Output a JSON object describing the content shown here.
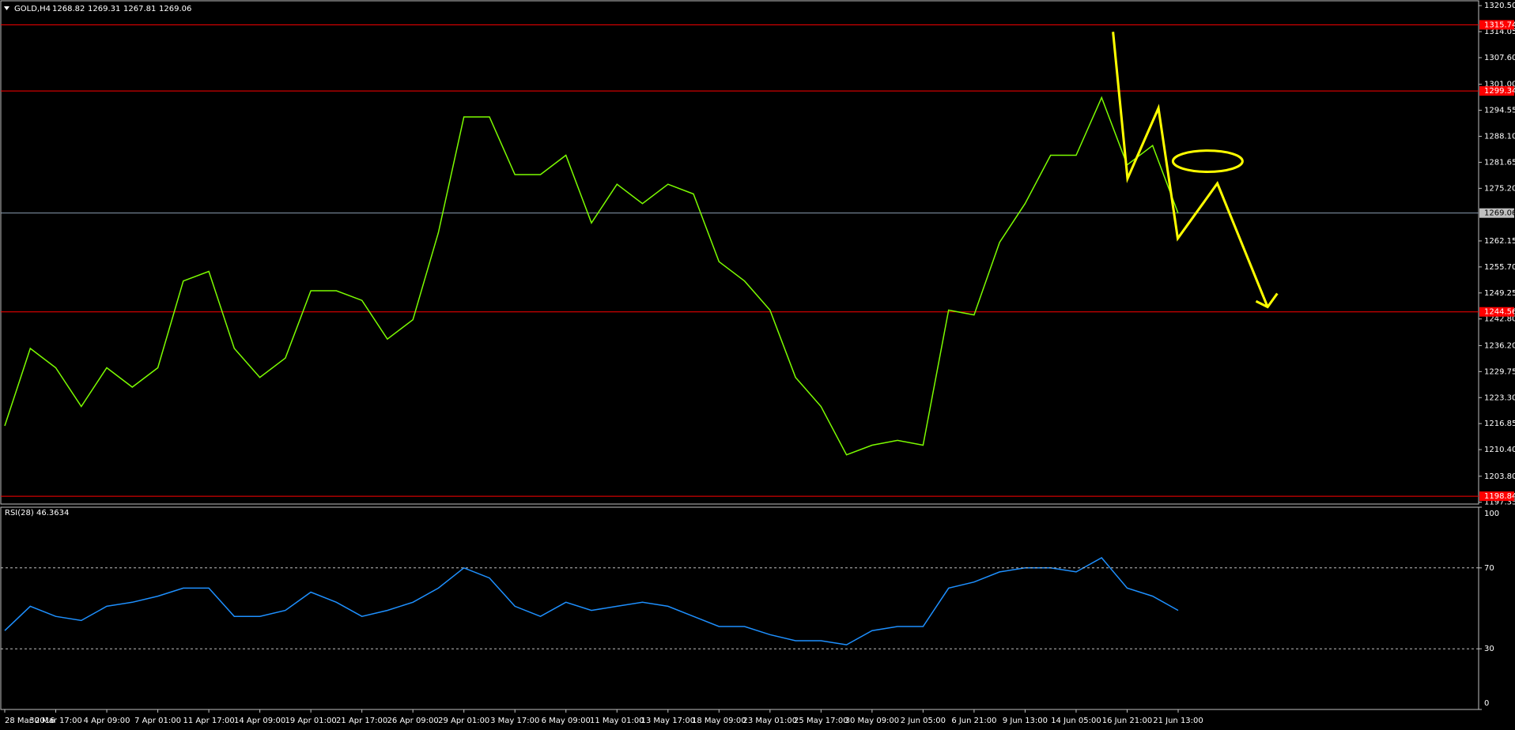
{
  "chart_data": {
    "type": "line",
    "title": "GOLD,H4",
    "quote": [
      "1268.82",
      "1269.31",
      "1267.81",
      "1269.06"
    ],
    "categories": [
      "28 Mar 2016",
      null,
      "30 Mar 17:00",
      null,
      "4 Apr 09:00",
      null,
      "7 Apr 01:00",
      null,
      "11 Apr 17:00",
      null,
      "14 Apr 09:00",
      null,
      "19 Apr 01:00",
      null,
      "21 Apr 17:00",
      null,
      "26 Apr 09:00",
      null,
      "29 Apr 01:00",
      null,
      "3 May 17:00",
      null,
      "6 May 09:00",
      null,
      "11 May 01:00",
      null,
      "13 May 17:00",
      null,
      "18 May 09:00",
      null,
      "23 May 01:00",
      null,
      "25 May 17:00",
      null,
      "30 May 09:00",
      null,
      "2 Jun 05:00",
      null,
      "6 Jun 21:00",
      null,
      "9 Jun 13:00",
      null,
      "14 Jun 05:00",
      null,
      "16 Jun 21:00",
      null,
      "21 Jun 13:00"
    ],
    "series": [
      {
        "name": "GOLD,H4",
        "color": "#7cfc00",
        "values": [
          1216.3,
          1235.5,
          1230.7,
          1221.1,
          1230.7,
          1225.9,
          1230.7,
          1252.2,
          1254.6,
          1235.5,
          1228.3,
          1233.1,
          1249.8,
          1249.8,
          1247.4,
          1237.8,
          1242.6,
          1264.2,
          1292.9,
          1292.9,
          1278.6,
          1278.6,
          1283.4,
          1266.6,
          1276.2,
          1271.4,
          1276.2,
          1273.8,
          1257.0,
          1252.2,
          1245.0,
          1228.3,
          1221.1,
          1209.1,
          1211.5,
          1212.7,
          1211.5,
          1245.0,
          1243.8,
          1261.8,
          1271.4,
          1283.4,
          1283.4,
          1297.7,
          1281.0,
          1285.8,
          1269.0
        ]
      }
    ],
    "ylim": [
      1196.9,
      1321.7
    ],
    "yticks": [
      {
        "value": 1320.5,
        "label": "1320.50"
      },
      1314.05,
      {
        "value": 1307.6,
        "label": "1307.60"
      },
      {
        "value": 1301.0,
        "label": "1301.00"
      },
      1294.55,
      {
        "value": 1288.1,
        "label": "1288.10"
      },
      1281.65,
      {
        "value": 1275.2,
        "label": "1275.20"
      },
      1262.15,
      {
        "value": 1255.7,
        "label": "1255.70"
      },
      1249.25,
      {
        "value": 1242.8,
        "label": "1242.80"
      },
      {
        "value": 1236.2,
        "label": "1236.20"
      },
      1229.75,
      {
        "value": 1223.3,
        "label": "1223.30"
      },
      1216.85,
      {
        "value": 1210.4,
        "label": "1210.40"
      },
      {
        "value": 1203.8,
        "label": "1203.80"
      },
      1197.35
    ],
    "levels": [
      1315.74,
      1299.34,
      1244.56,
      1198.84
    ],
    "level_color": "#ff0000",
    "current_price": 1269.06,
    "rsi": {
      "title": "RSI(28) 46.3634",
      "color": "#1e90ff",
      "values": [
        39,
        51,
        46,
        44,
        51,
        53,
        56,
        60,
        60,
        46,
        46,
        49,
        58,
        53,
        46,
        49,
        53,
        60,
        70,
        65,
        51,
        46,
        53,
        49,
        51,
        53,
        51,
        46,
        41,
        41,
        37,
        34,
        34,
        32,
        39,
        41,
        41,
        60,
        63,
        68,
        70,
        70,
        68,
        75,
        60,
        56,
        49
      ],
      "ylim": [
        0,
        100
      ],
      "yticks": [
        100,
        70,
        30,
        0
      ],
      "levels": [
        70,
        30
      ]
    }
  }
}
